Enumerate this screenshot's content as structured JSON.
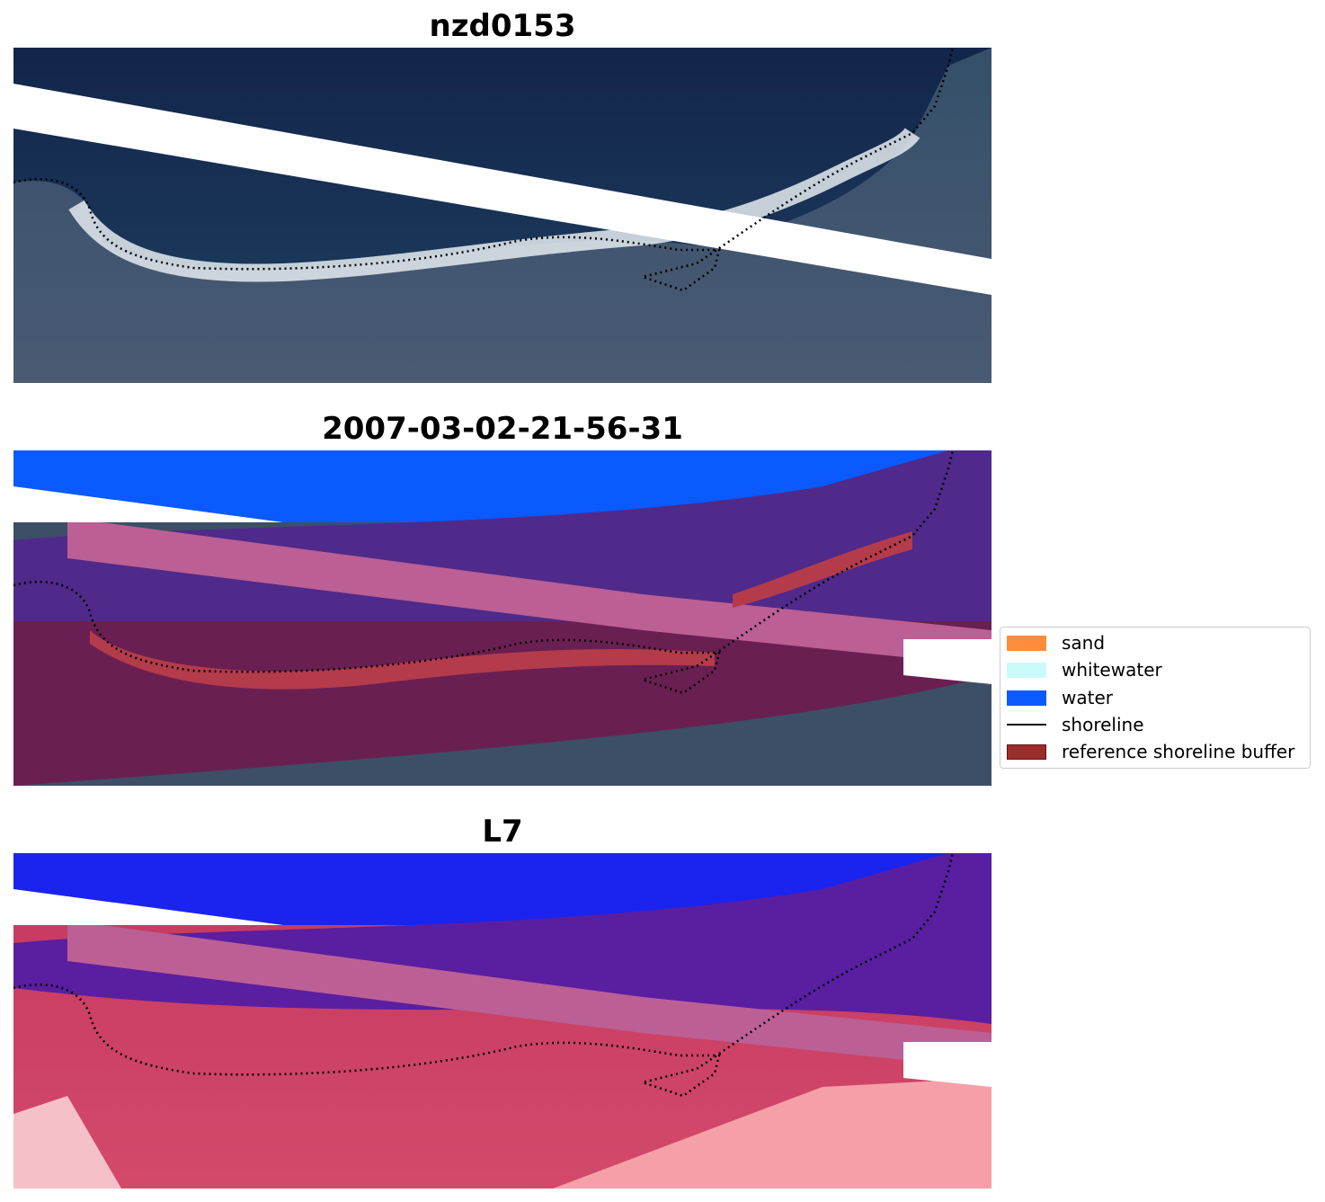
{
  "panels": [
    {
      "title": "nzd0153",
      "kind": "rgb"
    },
    {
      "title": "2007-03-02-21-56-31",
      "kind": "classified"
    },
    {
      "title": "L7",
      "kind": "index"
    }
  ],
  "legend": {
    "items": [
      {
        "label": "sand",
        "color": "#ff8c3c",
        "kind": "patch"
      },
      {
        "label": "whitewater",
        "color": "#c8fafa",
        "kind": "patch"
      },
      {
        "label": "water",
        "color": "#0a5aff",
        "kind": "patch"
      },
      {
        "label": "shoreline",
        "color": "#000000",
        "kind": "line"
      },
      {
        "label": "reference shoreline buffer",
        "color": "#9b2d2d",
        "kind": "patch"
      }
    ]
  },
  "colors": {
    "ocean_dark": "#13264d",
    "land": "#3c4f66",
    "beach_white": "#dfe6ec",
    "buffer_purple": "#4f2a8a",
    "buffer_pink": "#bb5f95",
    "buffer_land": "#6a1f52",
    "sand_red": "#b43b4a",
    "water_blue": "#0a5aff",
    "index_blue": "#1a24ee",
    "index_red": "#c5375f",
    "index_light": "#f5a0a8"
  }
}
